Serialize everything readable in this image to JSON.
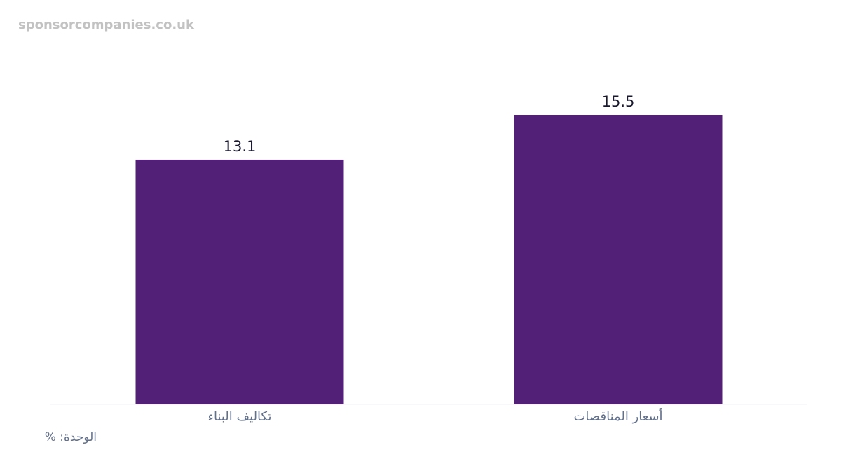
{
  "chart_data": {
    "type": "bar",
    "watermark": "sponsorcompanies.co.uk",
    "note": "الوحدة: %",
    "categories": [
      "تكاليف البناء",
      "أسعار المناقصات"
    ],
    "values": [
      13.1,
      15.5
    ],
    "color": "#522177"
  }
}
